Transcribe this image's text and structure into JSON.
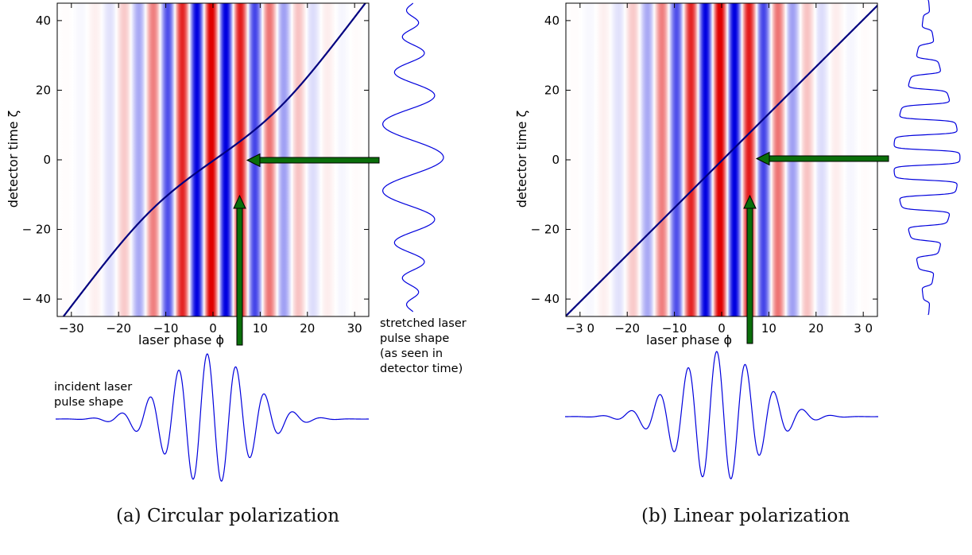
{
  "panels": [
    {
      "id": "a",
      "polarization": "circular",
      "caption": "(a) Circular polarization",
      "xlabel": "laser phase ϕ",
      "ylabel": "detector time ζ",
      "xticks": [
        {
          "value": -30,
          "label": "−30"
        },
        {
          "value": -20,
          "label": "−20"
        },
        {
          "value": -10,
          "label": "−10"
        },
        {
          "value": 0,
          "label": "0"
        },
        {
          "value": 10,
          "label": "10"
        },
        {
          "value": 20,
          "label": "20"
        },
        {
          "value": 30,
          "label": "30"
        }
      ],
      "yticks": [
        {
          "value": -40,
          "label": "− 40"
        },
        {
          "value": -20,
          "label": "− 20"
        },
        {
          "value": 0,
          "label": "0"
        },
        {
          "value": 20,
          "label": "20"
        },
        {
          "value": 40,
          "label": "40"
        }
      ],
      "xlim": [
        -33,
        33
      ],
      "ylim": [
        -45,
        45
      ],
      "annotations": {
        "incident": "incident laser\npulse shape",
        "stretched": "stretched laser\npulse shape\n(as seen in\ndetector time)"
      }
    },
    {
      "id": "b",
      "polarization": "linear",
      "caption": "(b) Linear polarization",
      "xlabel": "laser phase ϕ",
      "ylabel": "detector time ζ",
      "xticks": [
        {
          "value": -30,
          "label": "−3 0"
        },
        {
          "value": -20,
          "label": "−20"
        },
        {
          "value": -10,
          "label": "−10"
        },
        {
          "value": 0,
          "label": "0"
        },
        {
          "value": 10,
          "label": "10"
        },
        {
          "value": 20,
          "label": "20"
        },
        {
          "value": 30,
          "label": "3 0"
        }
      ],
      "yticks": [
        {
          "value": -40,
          "label": "− 40"
        },
        {
          "value": -20,
          "label": "− 20"
        },
        {
          "value": 0,
          "label": "0"
        },
        {
          "value": 20,
          "label": "20"
        },
        {
          "value": 40,
          "label": "40"
        }
      ],
      "xlim": [
        -33,
        33
      ],
      "ylim": [
        -45,
        45
      ]
    }
  ],
  "colors": {
    "positive": "#e00000",
    "negative": "#0000e0",
    "curve": "#000080",
    "waveform": "#0000dd",
    "arrow": "#0a6e0a"
  }
}
